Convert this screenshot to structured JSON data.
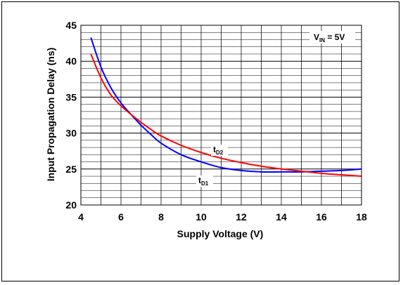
{
  "chart_data": {
    "type": "line",
    "xlabel": "Supply Voltage (V)",
    "ylabel": "Input Propagation Delay (ns)",
    "xlim": [
      4,
      18
    ],
    "ylim": [
      20,
      45
    ],
    "x_ticks": [
      "4",
      "6",
      "8",
      "10",
      "12",
      "14",
      "16",
      "18"
    ],
    "y_ticks": [
      "20",
      "25",
      "30",
      "35",
      "40",
      "45"
    ],
    "grid": true,
    "annotation": {
      "main": "V",
      "sub": "IN",
      "suffix": " = 5V"
    },
    "series": [
      {
        "name_main": "t",
        "name_sub": "D1",
        "color": "#0000ff",
        "x": [
          4.5,
          5,
          5.5,
          6,
          6.5,
          7,
          7.5,
          8,
          9,
          10,
          11,
          12,
          13,
          14,
          15,
          16,
          17,
          18
        ],
        "y": [
          43.3,
          39.2,
          36.3,
          34.2,
          32.6,
          31.1,
          29.8,
          28.6,
          27.0,
          26.0,
          25.2,
          24.8,
          24.6,
          24.6,
          24.6,
          24.7,
          24.8,
          25.0
        ]
      },
      {
        "name_main": "t",
        "name_sub": "D2",
        "color": "#ff0000",
        "x": [
          4.5,
          5,
          5.5,
          6,
          6.5,
          7,
          7.5,
          8,
          9,
          10,
          11,
          12,
          13,
          14,
          15,
          16,
          17,
          18
        ],
        "y": [
          41.0,
          37.7,
          35.3,
          33.8,
          32.6,
          31.5,
          30.5,
          29.6,
          28.3,
          27.3,
          26.5,
          25.9,
          25.4,
          25.0,
          24.7,
          24.4,
          24.2,
          24.0
        ]
      }
    ]
  }
}
